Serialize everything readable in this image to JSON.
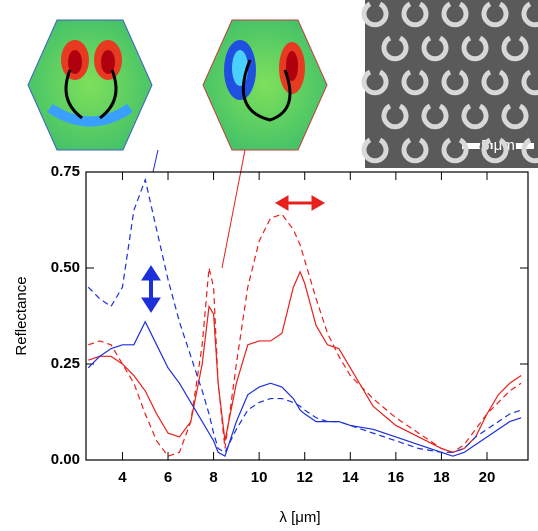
{
  "chart_data": {
    "type": "line",
    "y_label": "Reflectance",
    "x_label": "λ [μm]",
    "annotations": [
      "5 μm"
    ],
    "x": [
      2.5,
      3,
      3.5,
      4,
      4.5,
      5,
      5.5,
      6,
      6.5,
      7,
      7.5,
      7.8,
      8,
      8.2,
      8.5,
      9,
      9.5,
      10,
      10.5,
      11,
      11.5,
      11.8,
      12,
      12.5,
      13,
      13.5,
      14,
      15,
      16,
      17,
      18,
      18.5,
      19,
      19.5,
      20,
      20.5,
      21,
      21.5
    ],
    "series": [
      {
        "color": "#e8201c",
        "linestyle": "solid",
        "values": [
          0.26,
          0.27,
          0.27,
          0.25,
          0.22,
          0.18,
          0.12,
          0.07,
          0.06,
          0.1,
          0.25,
          0.4,
          0.38,
          0.2,
          0.05,
          0.2,
          0.3,
          0.31,
          0.31,
          0.33,
          0.45,
          0.49,
          0.46,
          0.35,
          0.3,
          0.29,
          0.24,
          0.14,
          0.09,
          0.06,
          0.03,
          0.02,
          0.03,
          0.06,
          0.12,
          0.17,
          0.2,
          0.22
        ]
      },
      {
        "color": "#e8201c",
        "linestyle": "dashed",
        "values": [
          0.3,
          0.31,
          0.3,
          0.25,
          0.2,
          0.12,
          0.05,
          0.01,
          0.02,
          0.1,
          0.3,
          0.5,
          0.45,
          0.2,
          0.03,
          0.25,
          0.45,
          0.57,
          0.63,
          0.64,
          0.6,
          0.56,
          0.52,
          0.42,
          0.33,
          0.27,
          0.22,
          0.16,
          0.11,
          0.07,
          0.03,
          0.02,
          0.04,
          0.08,
          0.12,
          0.15,
          0.18,
          0.2
        ]
      },
      {
        "color": "#1c2fd8",
        "linestyle": "solid",
        "values": [
          0.24,
          0.27,
          0.29,
          0.3,
          0.3,
          0.36,
          0.3,
          0.24,
          0.2,
          0.15,
          0.1,
          0.07,
          0.05,
          0.02,
          0.01,
          0.1,
          0.17,
          0.19,
          0.2,
          0.19,
          0.16,
          0.13,
          0.12,
          0.1,
          0.1,
          0.1,
          0.09,
          0.08,
          0.06,
          0.04,
          0.02,
          0.01,
          0.02,
          0.04,
          0.06,
          0.08,
          0.1,
          0.11
        ]
      },
      {
        "color": "#1c2fd8",
        "linestyle": "dashed",
        "values": [
          0.45,
          0.42,
          0.4,
          0.45,
          0.65,
          0.73,
          0.6,
          0.47,
          0.36,
          0.27,
          0.18,
          0.12,
          0.07,
          0.03,
          0.02,
          0.08,
          0.13,
          0.15,
          0.16,
          0.16,
          0.15,
          0.14,
          0.13,
          0.11,
          0.1,
          0.1,
          0.09,
          0.07,
          0.05,
          0.03,
          0.02,
          0.02,
          0.03,
          0.06,
          0.08,
          0.1,
          0.12,
          0.13
        ]
      }
    ],
    "xlim": [
      2.4,
      21.8
    ],
    "ylim": [
      0,
      0.75
    ],
    "xticks": [
      4,
      6,
      8,
      10,
      12,
      14,
      16,
      18,
      20
    ],
    "yticks": [
      {
        "value": 0,
        "label": "0.00"
      },
      {
        "value": 0.25,
        "label": "0.25"
      },
      {
        "value": 0.5,
        "label": "0.50"
      },
      {
        "value": 0.75,
        "label": "0.75"
      }
    ],
    "grid": false
  }
}
